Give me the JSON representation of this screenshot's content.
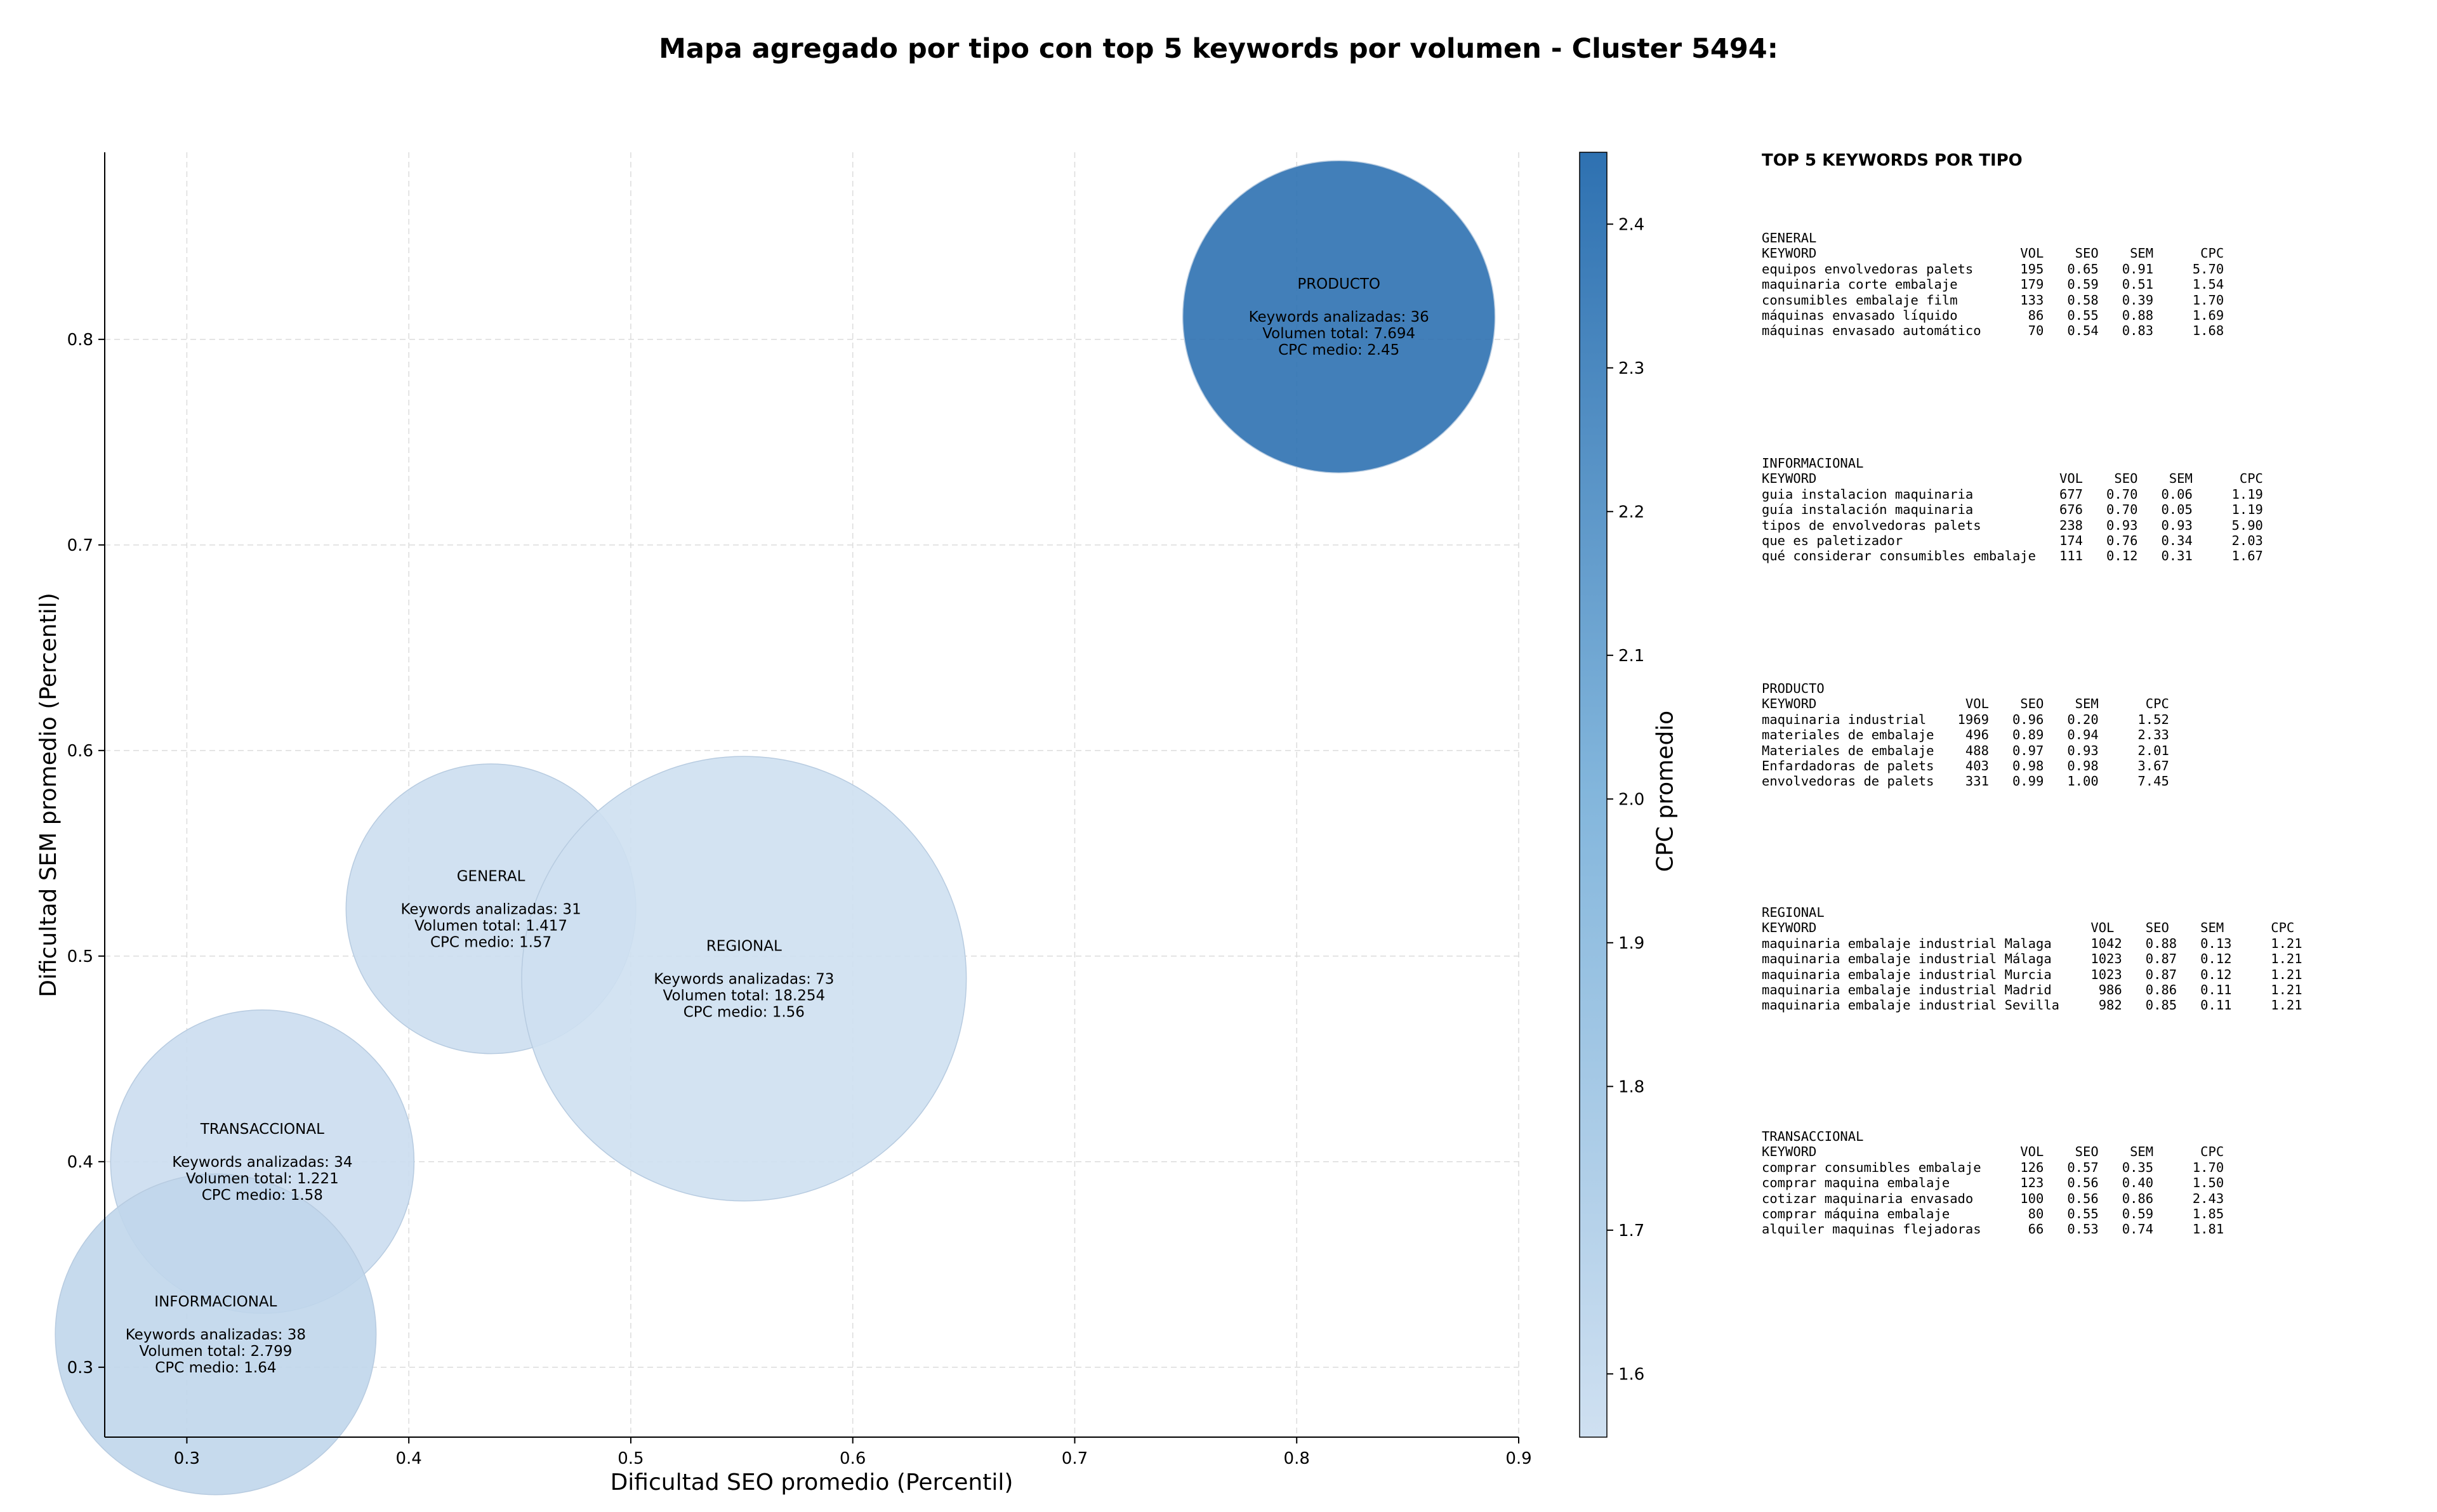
{
  "chart_data": {
    "type": "scatter",
    "title": "Mapa agregado por tipo con top 5 keywords por volumen - Cluster 5494:",
    "xlabel": "Dificultad SEO promedio (Percentil)",
    "ylabel": "Dificultad SEM promedio (Percentil)",
    "xlim": [
      0.263,
      0.9
    ],
    "ylim": [
      0.266,
      0.891
    ],
    "xticks": [
      "0.3",
      "0.4",
      "0.5",
      "0.6",
      "0.7",
      "0.8",
      "0.9"
    ],
    "yticks": [
      "0.3",
      "0.4",
      "0.5",
      "0.6",
      "0.7",
      "0.8"
    ],
    "grid": true,
    "colorbar": {
      "label": "CPC promedio",
      "range": [
        1.556,
        2.45
      ],
      "ticks": [
        "1.6",
        "1.7",
        "1.8",
        "1.9",
        "2.0",
        "2.1",
        "2.2",
        "2.3",
        "2.4"
      ],
      "color_low": "#cfe0f1",
      "color_high": "#2e71b1"
    },
    "bubbles": [
      {
        "name": "PRODUCTO",
        "x": 0.819,
        "y": 0.811,
        "keywords": 36,
        "volume": 7694,
        "cpc": 2.45,
        "lines": [
          "PRODUCTO",
          "",
          "Keywords analizadas: 36",
          "Volumen total: 7.694",
          "CPC medio: 2.45"
        ]
      },
      {
        "name": "GENERAL",
        "x": 0.437,
        "y": 0.523,
        "keywords": 31,
        "volume": 1417,
        "cpc": 1.57,
        "lines": [
          "GENERAL",
          "",
          "Keywords analizadas: 31",
          "Volumen total: 1.417",
          "CPC medio: 1.57"
        ]
      },
      {
        "name": "REGIONAL",
        "x": 0.551,
        "y": 0.489,
        "keywords": 73,
        "volume": 18254,
        "cpc": 1.56,
        "lines": [
          "REGIONAL",
          "",
          "Keywords analizadas: 73",
          "Volumen total: 18.254",
          "CPC medio: 1.56"
        ]
      },
      {
        "name": "TRANSACCIONAL",
        "x": 0.334,
        "y": 0.4,
        "keywords": 34,
        "volume": 1221,
        "cpc": 1.58,
        "lines": [
          "TRANSACCIONAL",
          "",
          "Keywords analizadas: 34",
          "Volumen total: 1.221",
          "CPC medio: 1.58"
        ]
      },
      {
        "name": "INFORMACIONAL",
        "x": 0.313,
        "y": 0.316,
        "keywords": 38,
        "volume": 2799,
        "cpc": 1.64,
        "lines": [
          "INFORMACIONAL",
          "",
          "Keywords analizadas: 38",
          "Volumen total: 2.799",
          "CPC medio: 1.64"
        ]
      }
    ]
  },
  "panel": {
    "title": "TOP 5 KEYWORDS POR TIPO",
    "sections": [
      {
        "type": "GENERAL",
        "header": "KEYWORD                          VOL    SEO    SEM      CPC",
        "rows": [
          "equipos envolvedoras palets      195   0.65   0.91     5.70",
          "maquinaria corte embalaje        179   0.59   0.51     1.54",
          "consumibles embalaje film        133   0.58   0.39     1.70",
          "máquinas envasado líquido         86   0.55   0.88     1.69",
          "máquinas envasado automático      70   0.54   0.83     1.68"
        ]
      },
      {
        "type": "INFORMACIONAL",
        "header": "KEYWORD                               VOL    SEO    SEM      CPC",
        "rows": [
          "guia instalacion maquinaria           677   0.70   0.06     1.19",
          "guía instalación maquinaria           676   0.70   0.05     1.19",
          "tipos de envolvedoras palets          238   0.93   0.93     5.90",
          "que es paletizador                    174   0.76   0.34     2.03",
          "qué considerar consumibles embalaje   111   0.12   0.31     1.67"
        ]
      },
      {
        "type": "PRODUCTO",
        "header": "KEYWORD                   VOL    SEO    SEM      CPC",
        "rows": [
          "maquinaria industrial    1969   0.96   0.20     1.52",
          "materiales de embalaje    496   0.89   0.94     2.33",
          "Materiales de embalaje    488   0.97   0.93     2.01",
          "Enfardadoras de palets    403   0.98   0.98     3.67",
          "envolvedoras de palets    331   0.99   1.00     7.45"
        ]
      },
      {
        "type": "REGIONAL",
        "header": "KEYWORD                                   VOL    SEO    SEM      CPC",
        "rows": [
          "maquinaria embalaje industrial Malaga     1042   0.88   0.13     1.21",
          "maquinaria embalaje industrial Málaga     1023   0.87   0.12     1.21",
          "maquinaria embalaje industrial Murcia     1023   0.87   0.12     1.21",
          "maquinaria embalaje industrial Madrid      986   0.86   0.11     1.21",
          "maquinaria embalaje industrial Sevilla     982   0.85   0.11     1.21"
        ]
      },
      {
        "type": "TRANSACCIONAL",
        "header": "KEYWORD                          VOL    SEO    SEM      CPC",
        "rows": [
          "comprar consumibles embalaje     126   0.57   0.35     1.70",
          "comprar maquina embalaje         123   0.56   0.40     1.50",
          "cotizar maquinaria envasado      100   0.56   0.86     2.43",
          "comprar máquina embalaje          80   0.55   0.59     1.85",
          "alquiler maquinas flejadoras      66   0.53   0.74     1.81"
        ]
      }
    ]
  }
}
